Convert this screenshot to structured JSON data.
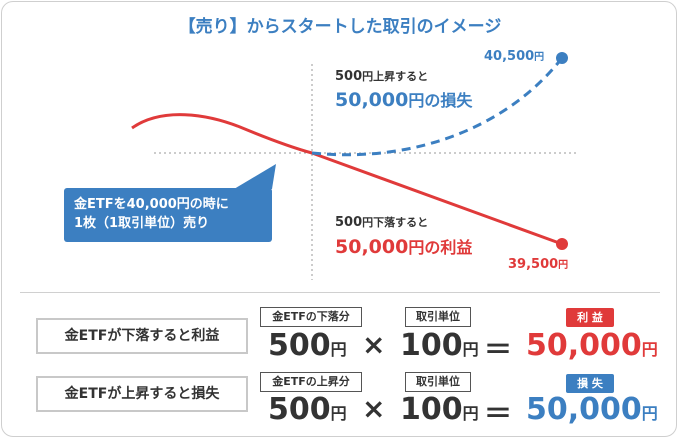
{
  "title": "【売り】からスタートした取引のイメージ",
  "chart": {
    "upper_small_num": "500",
    "upper_small_text": "円上昇すると",
    "upper_big_num": "50,000",
    "upper_big_text": "円の損失",
    "lower_small_num": "500",
    "lower_small_text": "円下落すると",
    "lower_big_num": "50,000",
    "lower_big_text": "円の利益",
    "end_up_num": "40,500",
    "end_up_unit": "円",
    "end_down_num": "39,500",
    "end_down_unit": "円",
    "callout_line1": "金ETFを40,000円の時に",
    "callout_line2": "1枚（1取引単位）売り",
    "colors": {
      "loss": "#3c7fc1",
      "profit": "#e03a3a"
    }
  },
  "rows": [
    {
      "label": "金ETFが下落すると利益",
      "tag1": "金ETFの下落分",
      "value1": "500",
      "unit1": "円",
      "op1": "×",
      "tag2": "取引単位",
      "value2": "100",
      "unit2": "円",
      "op2": "＝",
      "badge": "利 益",
      "result": "50,000",
      "result_unit": "円"
    },
    {
      "label": "金ETFが上昇すると損失",
      "tag1": "金ETFの上昇分",
      "value1": "500",
      "unit1": "円",
      "op1": "×",
      "tag2": "取引単位",
      "value2": "100",
      "unit2": "円",
      "op2": "＝",
      "badge": "損 失",
      "result": "50,000",
      "result_unit": "円"
    }
  ]
}
